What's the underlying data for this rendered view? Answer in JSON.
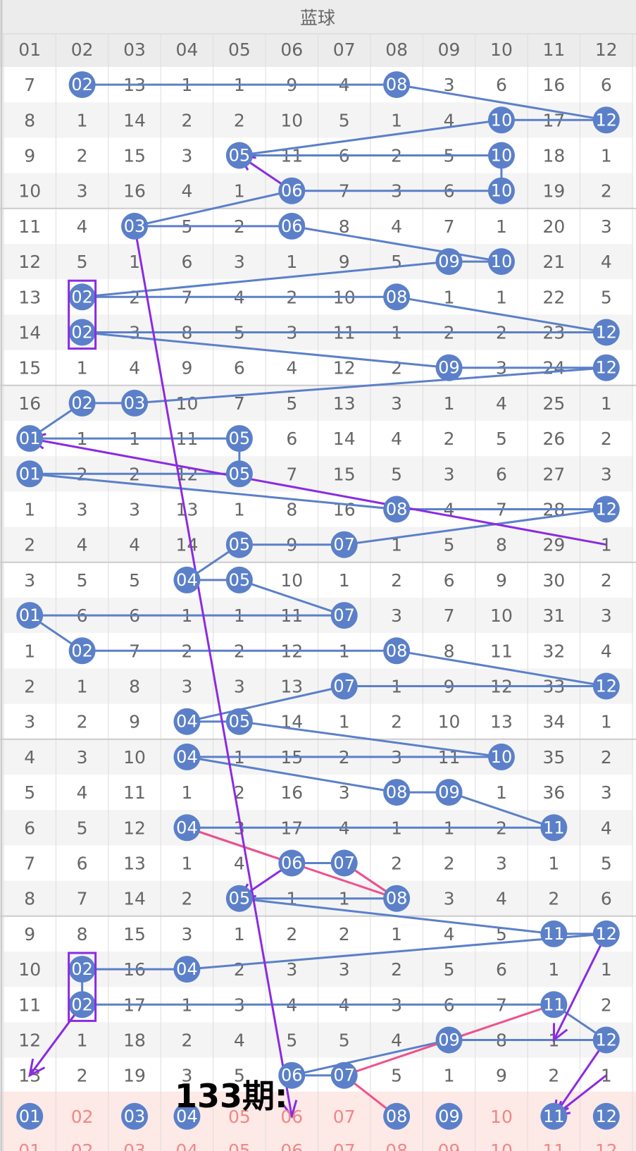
{
  "title": "蓝球",
  "columns": [
    "01",
    "02",
    "03",
    "04",
    "05",
    "06",
    "07",
    "08",
    "09",
    "10",
    "11",
    "12"
  ],
  "annotation": "133期:",
  "colors": {
    "header_bg": "#ececec",
    "stripe": "#f4f4f4",
    "ball": "#5b80c9",
    "line": "#5b80c9",
    "purple": "#8a2be2",
    "pink": "#f0508c",
    "pred_bg": "#fde9e6",
    "pred_text": "#ee8888"
  },
  "chart_data": {
    "type": "table",
    "rows": [
      {
        "cells": [
          7,
          2,
          13,
          1,
          1,
          9,
          4,
          8,
          3,
          6,
          16,
          6
        ],
        "hit": [
          2,
          8
        ]
      },
      {
        "cells": [
          8,
          1,
          14,
          2,
          2,
          10,
          5,
          1,
          4,
          10,
          17,
          12
        ],
        "hit": [
          10,
          12
        ]
      },
      {
        "cells": [
          9,
          2,
          15,
          3,
          5,
          11,
          6,
          2,
          5,
          10,
          18,
          1
        ],
        "hit": [
          5,
          10
        ]
      },
      {
        "cells": [
          10,
          3,
          16,
          4,
          1,
          6,
          7,
          3,
          6,
          10,
          19,
          2
        ],
        "hit": [
          6,
          10
        ]
      },
      {
        "cells": [
          11,
          4,
          3,
          5,
          2,
          6,
          8,
          4,
          7,
          1,
          20,
          3
        ],
        "hit": [
          3,
          6
        ]
      },
      {
        "cells": [
          12,
          5,
          1,
          6,
          3,
          1,
          9,
          5,
          9,
          10,
          21,
          4
        ],
        "hit": [
          9,
          10
        ]
      },
      {
        "cells": [
          13,
          2,
          2,
          7,
          4,
          2,
          10,
          8,
          1,
          1,
          22,
          5
        ],
        "hit": [
          2,
          8
        ]
      },
      {
        "cells": [
          14,
          2,
          3,
          8,
          5,
          3,
          11,
          1,
          2,
          2,
          23,
          12
        ],
        "hit": [
          2,
          12
        ]
      },
      {
        "cells": [
          15,
          1,
          4,
          9,
          6,
          4,
          12,
          2,
          9,
          3,
          24,
          12
        ],
        "hit": [
          9,
          12
        ]
      },
      {
        "cells": [
          16,
          2,
          3,
          10,
          7,
          5,
          13,
          3,
          1,
          4,
          25,
          1
        ],
        "hit": [
          2,
          3
        ]
      },
      {
        "cells": [
          1,
          1,
          1,
          11,
          5,
          6,
          14,
          4,
          2,
          5,
          26,
          2
        ],
        "hit": [
          1,
          5
        ]
      },
      {
        "cells": [
          1,
          2,
          2,
          12,
          5,
          7,
          15,
          5,
          3,
          6,
          27,
          3
        ],
        "hit": [
          1,
          5
        ]
      },
      {
        "cells": [
          1,
          3,
          3,
          13,
          1,
          8,
          16,
          8,
          4,
          7,
          28,
          12
        ],
        "hit": [
          8,
          12
        ]
      },
      {
        "cells": [
          2,
          4,
          4,
          14,
          5,
          9,
          7,
          1,
          5,
          8,
          29,
          1
        ],
        "hit": [
          5,
          7
        ]
      },
      {
        "cells": [
          3,
          5,
          5,
          4,
          5,
          10,
          1,
          2,
          6,
          9,
          30,
          2
        ],
        "hit": [
          4,
          5
        ]
      },
      {
        "cells": [
          1,
          6,
          6,
          1,
          1,
          11,
          7,
          3,
          7,
          10,
          31,
          3
        ],
        "hit": [
          1,
          7
        ]
      },
      {
        "cells": [
          1,
          2,
          7,
          2,
          2,
          12,
          1,
          8,
          8,
          11,
          32,
          4
        ],
        "hit": [
          2,
          8
        ]
      },
      {
        "cells": [
          2,
          1,
          8,
          3,
          3,
          13,
          7,
          1,
          9,
          12,
          33,
          12
        ],
        "hit": [
          7,
          12
        ]
      },
      {
        "cells": [
          3,
          2,
          9,
          4,
          5,
          14,
          1,
          2,
          10,
          13,
          34,
          1
        ],
        "hit": [
          4,
          5
        ]
      },
      {
        "cells": [
          4,
          3,
          10,
          4,
          1,
          15,
          2,
          3,
          11,
          10,
          35,
          2
        ],
        "hit": [
          4,
          10
        ]
      },
      {
        "cells": [
          5,
          4,
          11,
          1,
          2,
          16,
          3,
          8,
          9,
          1,
          36,
          3
        ],
        "hit": [
          8,
          9
        ]
      },
      {
        "cells": [
          6,
          5,
          12,
          4,
          3,
          17,
          4,
          1,
          1,
          2,
          11,
          4
        ],
        "hit": [
          4,
          11
        ]
      },
      {
        "cells": [
          7,
          6,
          13,
          1,
          4,
          6,
          7,
          2,
          2,
          3,
          1,
          5
        ],
        "hit": [
          6,
          7
        ]
      },
      {
        "cells": [
          8,
          7,
          14,
          2,
          5,
          1,
          1,
          8,
          3,
          4,
          2,
          6
        ],
        "hit": [
          5,
          8
        ]
      },
      {
        "cells": [
          9,
          8,
          15,
          3,
          1,
          2,
          2,
          1,
          4,
          5,
          11,
          12
        ],
        "hit": [
          11,
          12
        ]
      },
      {
        "cells": [
          10,
          2,
          16,
          4,
          2,
          3,
          3,
          2,
          5,
          6,
          1,
          1
        ],
        "hit": [
          2,
          4
        ]
      },
      {
        "cells": [
          11,
          2,
          17,
          1,
          3,
          4,
          4,
          3,
          6,
          7,
          11,
          2
        ],
        "hit": [
          2,
          11
        ]
      },
      {
        "cells": [
          12,
          1,
          18,
          2,
          4,
          5,
          5,
          4,
          9,
          8,
          1,
          12
        ],
        "hit": [
          9,
          12
        ]
      },
      {
        "cells": [
          13,
          2,
          19,
          3,
          5,
          6,
          7,
          5,
          1,
          9,
          2,
          1
        ],
        "hit": [
          6,
          7
        ]
      }
    ],
    "prediction_row": {
      "hit": [
        1,
        3,
        4,
        8,
        9,
        11,
        12
      ]
    },
    "purple_lines": [
      [
        13,
        12,
        10,
        1
      ],
      [
        26,
        2,
        28,
        1
      ],
      [
        3,
        6,
        2,
        5
      ],
      [
        4,
        3,
        29,
        6
      ],
      [
        22,
        6,
        23,
        5
      ],
      [
        28,
        12,
        29,
        11
      ],
      [
        24,
        12,
        27,
        11
      ],
      [
        27,
        12,
        29,
        11
      ]
    ],
    "pink_lines": [
      [
        21,
        4,
        23,
        8
      ],
      [
        22,
        7,
        23,
        8
      ],
      [
        26,
        11,
        28,
        7
      ],
      [
        28,
        7,
        29,
        8
      ]
    ],
    "selection_boxes": [
      [
        6,
        7,
        2
      ],
      [
        25,
        26,
        2
      ]
    ]
  }
}
